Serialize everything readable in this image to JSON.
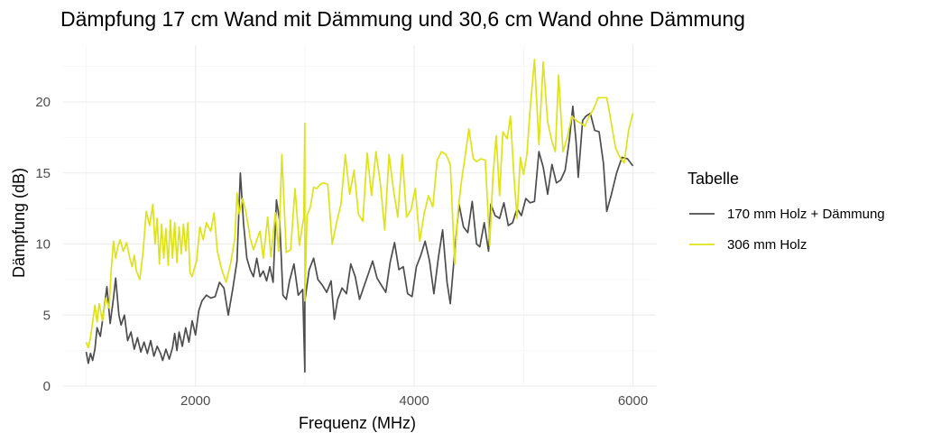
{
  "chart_data": {
    "type": "line",
    "title": "Dämpfung 17 cm Wand mit Dämmung und 30,6 cm Wand ohne Dämmung",
    "xlabel": "Frequenz (MHz)",
    "ylabel": "Dämpfung (dB)",
    "xlim": [
      790,
      6210
    ],
    "ylim": [
      0,
      24
    ],
    "xticks": [
      2000,
      4000,
      6000
    ],
    "yticks": [
      0,
      5,
      10,
      15,
      20
    ],
    "x_minor_ticks": [
      1000,
      3000,
      5000
    ],
    "y_minor_ticks": [
      2.5,
      7.5,
      12.5,
      17.5,
      22.5
    ],
    "grid": true,
    "legend": {
      "title": "Tabelle",
      "position": "right"
    },
    "series": [
      {
        "name": "170 mm Holz + Dämmung",
        "color": "#4d4d4d",
        "points": [
          [
            1000,
            2.4
          ],
          [
            1020,
            1.6
          ],
          [
            1040,
            2.3
          ],
          [
            1060,
            1.8
          ],
          [
            1080,
            2.6
          ],
          [
            1100,
            4.1
          ],
          [
            1130,
            3.5
          ],
          [
            1160,
            5.2
          ],
          [
            1190,
            7.0
          ],
          [
            1220,
            4.4
          ],
          [
            1250,
            6.2
          ],
          [
            1270,
            7.6
          ],
          [
            1300,
            5.0
          ],
          [
            1320,
            4.3
          ],
          [
            1350,
            5.0
          ],
          [
            1380,
            3.2
          ],
          [
            1410,
            3.8
          ],
          [
            1440,
            2.6
          ],
          [
            1470,
            3.4
          ],
          [
            1500,
            2.4
          ],
          [
            1530,
            3.1
          ],
          [
            1560,
            2.3
          ],
          [
            1590,
            3.2
          ],
          [
            1620,
            2.1
          ],
          [
            1650,
            2.8
          ],
          [
            1680,
            2.3
          ],
          [
            1700,
            1.8
          ],
          [
            1730,
            2.6
          ],
          [
            1760,
            1.9
          ],
          [
            1790,
            2.7
          ],
          [
            1810,
            3.7
          ],
          [
            1830,
            2.5
          ],
          [
            1850,
            3.8
          ],
          [
            1880,
            2.8
          ],
          [
            1910,
            4.1
          ],
          [
            1940,
            3.1
          ],
          [
            1970,
            4.6
          ],
          [
            2000,
            3.6
          ],
          [
            2030,
            5.3
          ],
          [
            2060,
            6.0
          ],
          [
            2100,
            6.4
          ],
          [
            2140,
            6.2
          ],
          [
            2180,
            6.3
          ],
          [
            2220,
            7.3
          ],
          [
            2260,
            6.9
          ],
          [
            2300,
            5.0
          ],
          [
            2340,
            6.8
          ],
          [
            2380,
            8.8
          ],
          [
            2410,
            15.0
          ],
          [
            2440,
            11.4
          ],
          [
            2470,
            9.0
          ],
          [
            2500,
            8.2
          ],
          [
            2530,
            7.7
          ],
          [
            2560,
            9.0
          ],
          [
            2590,
            7.7
          ],
          [
            2620,
            8.1
          ],
          [
            2650,
            7.4
          ],
          [
            2680,
            8.4
          ],
          [
            2710,
            7.3
          ],
          [
            2740,
            13.1
          ],
          [
            2770,
            11.6
          ],
          [
            2800,
            6.4
          ],
          [
            2830,
            6.1
          ],
          [
            2860,
            7.4
          ],
          [
            2900,
            8.6
          ],
          [
            2940,
            6.4
          ],
          [
            2980,
            6.8
          ],
          [
            3000,
            1.0
          ],
          [
            3000,
            6.0
          ],
          [
            3040,
            8.2
          ],
          [
            3080,
            9.0
          ],
          [
            3120,
            7.5
          ],
          [
            3160,
            7.1
          ],
          [
            3200,
            6.6
          ],
          [
            3240,
            7.4
          ],
          [
            3270,
            4.7
          ],
          [
            3300,
            6.1
          ],
          [
            3340,
            6.9
          ],
          [
            3380,
            6.5
          ],
          [
            3420,
            8.6
          ],
          [
            3460,
            7.7
          ],
          [
            3500,
            6.1
          ],
          [
            3540,
            7.0
          ],
          [
            3580,
            7.9
          ],
          [
            3620,
            8.8
          ],
          [
            3660,
            7.6
          ],
          [
            3700,
            7.1
          ],
          [
            3740,
            6.6
          ],
          [
            3780,
            8.7
          ],
          [
            3820,
            10.1
          ],
          [
            3860,
            8.2
          ],
          [
            3900,
            8.4
          ],
          [
            3940,
            6.5
          ],
          [
            3980,
            6.3
          ],
          [
            4020,
            8.4
          ],
          [
            4060,
            9.2
          ],
          [
            4100,
            10.2
          ],
          [
            4140,
            8.8
          ],
          [
            4180,
            6.5
          ],
          [
            4220,
            9.0
          ],
          [
            4260,
            11.0
          ],
          [
            4300,
            7.3
          ],
          [
            4330,
            5.8
          ],
          [
            4370,
            9.5
          ],
          [
            4410,
            12.8
          ],
          [
            4450,
            11.2
          ],
          [
            4490,
            10.8
          ],
          [
            4530,
            13.0
          ],
          [
            4570,
            10.0
          ],
          [
            4600,
            9.8
          ],
          [
            4640,
            11.5
          ],
          [
            4680,
            9.5
          ],
          [
            4700,
            12.8
          ],
          [
            4740,
            12.0
          ],
          [
            4780,
            11.8
          ],
          [
            4820,
            12.9
          ],
          [
            4860,
            11.3
          ],
          [
            4900,
            11.5
          ],
          [
            4940,
            12.5
          ],
          [
            4980,
            12.0
          ],
          [
            5020,
            13.2
          ],
          [
            5060,
            12.9
          ],
          [
            5100,
            13.0
          ],
          [
            5140,
            16.5
          ],
          [
            5180,
            15.4
          ],
          [
            5220,
            13.5
          ],
          [
            5260,
            15.6
          ],
          [
            5300,
            14.3
          ],
          [
            5340,
            14.5
          ],
          [
            5380,
            15.2
          ],
          [
            5420,
            17.4
          ],
          [
            5450,
            19.7
          ],
          [
            5480,
            17.2
          ],
          [
            5500,
            14.7
          ],
          [
            5540,
            18.7
          ],
          [
            5570,
            19.0
          ],
          [
            5610,
            19.2
          ],
          [
            5650,
            18.0
          ],
          [
            5690,
            17.9
          ],
          [
            5730,
            15.7
          ],
          [
            5760,
            12.3
          ],
          [
            5800,
            13.4
          ],
          [
            5850,
            15.0
          ],
          [
            5900,
            16.1
          ],
          [
            5950,
            16.0
          ],
          [
            6000,
            15.5
          ]
        ]
      },
      {
        "name": "306 mm Holz",
        "color": "#dde318",
        "points": [
          [
            1000,
            3.1
          ],
          [
            1020,
            2.7
          ],
          [
            1040,
            3.4
          ],
          [
            1060,
            4.5
          ],
          [
            1080,
            5.7
          ],
          [
            1100,
            4.5
          ],
          [
            1120,
            5.8
          ],
          [
            1150,
            4.6
          ],
          [
            1180,
            6.2
          ],
          [
            1210,
            5.5
          ],
          [
            1230,
            8.2
          ],
          [
            1250,
            10.2
          ],
          [
            1270,
            9.0
          ],
          [
            1290,
            9.8
          ],
          [
            1310,
            10.3
          ],
          [
            1340,
            9.5
          ],
          [
            1370,
            10.1
          ],
          [
            1400,
            9.0
          ],
          [
            1420,
            8.4
          ],
          [
            1440,
            9.2
          ],
          [
            1460,
            8.1
          ],
          [
            1490,
            7.5
          ],
          [
            1520,
            9.4
          ],
          [
            1550,
            12.3
          ],
          [
            1580,
            11.3
          ],
          [
            1610,
            12.8
          ],
          [
            1630,
            10.0
          ],
          [
            1650,
            11.8
          ],
          [
            1670,
            8.6
          ],
          [
            1690,
            11.4
          ],
          [
            1710,
            9.0
          ],
          [
            1730,
            11.1
          ],
          [
            1750,
            8.5
          ],
          [
            1770,
            11.7
          ],
          [
            1790,
            9.0
          ],
          [
            1810,
            11.5
          ],
          [
            1830,
            8.7
          ],
          [
            1850,
            11.2
          ],
          [
            1870,
            9.3
          ],
          [
            1890,
            11.4
          ],
          [
            1910,
            9.5
          ],
          [
            1930,
            11.5
          ],
          [
            1950,
            8.0
          ],
          [
            1970,
            7.7
          ],
          [
            1990,
            8.3
          ],
          [
            2010,
            8.8
          ],
          [
            2040,
            11.2
          ],
          [
            2070,
            10.3
          ],
          [
            2100,
            11.5
          ],
          [
            2140,
            10.9
          ],
          [
            2170,
            12.2
          ],
          [
            2200,
            9.5
          ],
          [
            2240,
            8.2
          ],
          [
            2280,
            7.3
          ],
          [
            2320,
            8.6
          ],
          [
            2360,
            10.4
          ],
          [
            2380,
            13.6
          ],
          [
            2400,
            12.1
          ],
          [
            2430,
            13.2
          ],
          [
            2460,
            12.3
          ],
          [
            2500,
            10.4
          ],
          [
            2530,
            9.6
          ],
          [
            2560,
            10.3
          ],
          [
            2590,
            10.9
          ],
          [
            2620,
            9.0
          ],
          [
            2660,
            11.9
          ],
          [
            2690,
            9.1
          ],
          [
            2730,
            12.2
          ],
          [
            2760,
            9.5
          ],
          [
            2790,
            16.3
          ],
          [
            2830,
            9.4
          ],
          [
            2870,
            9.6
          ],
          [
            2910,
            13.9
          ],
          [
            2950,
            9.9
          ],
          [
            2990,
            11.9
          ],
          [
            3000,
            18.5
          ],
          [
            3000,
            6.0
          ],
          [
            3020,
            12.0
          ],
          [
            3050,
            12.6
          ],
          [
            3080,
            14.0
          ],
          [
            3110,
            13.9
          ],
          [
            3140,
            14.2
          ],
          [
            3170,
            14.3
          ],
          [
            3210,
            14.2
          ],
          [
            3250,
            10.0
          ],
          [
            3290,
            11.5
          ],
          [
            3330,
            12.8
          ],
          [
            3370,
            16.3
          ],
          [
            3410,
            13.5
          ],
          [
            3450,
            15.2
          ],
          [
            3490,
            12.1
          ],
          [
            3530,
            11.6
          ],
          [
            3570,
            16.4
          ],
          [
            3610,
            13.4
          ],
          [
            3650,
            16.5
          ],
          [
            3690,
            14.3
          ],
          [
            3730,
            11.0
          ],
          [
            3770,
            16.3
          ],
          [
            3810,
            13.8
          ],
          [
            3850,
            11.9
          ],
          [
            3890,
            16.3
          ],
          [
            3930,
            11.9
          ],
          [
            3970,
            12.4
          ],
          [
            4010,
            13.9
          ],
          [
            4050,
            10.2
          ],
          [
            4090,
            12.1
          ],
          [
            4130,
            13.4
          ],
          [
            4170,
            12.6
          ],
          [
            4210,
            15.9
          ],
          [
            4250,
            16.5
          ],
          [
            4290,
            16.3
          ],
          [
            4330,
            15.6
          ],
          [
            4370,
            8.6
          ],
          [
            4400,
            12.3
          ],
          [
            4430,
            14.3
          ],
          [
            4460,
            15.9
          ],
          [
            4500,
            18.1
          ],
          [
            4540,
            16.0
          ],
          [
            4570,
            15.8
          ],
          [
            4610,
            16.0
          ],
          [
            4650,
            15.9
          ],
          [
            4690,
            9.9
          ],
          [
            4720,
            14.8
          ],
          [
            4750,
            17.6
          ],
          [
            4780,
            13.4
          ],
          [
            4810,
            17.9
          ],
          [
            4850,
            17.4
          ],
          [
            4880,
            19.0
          ],
          [
            4910,
            15.0
          ],
          [
            4940,
            11.8
          ],
          [
            4970,
            16.1
          ],
          [
            5000,
            14.9
          ],
          [
            5030,
            16.3
          ],
          [
            5060,
            19.5
          ],
          [
            5100,
            23.0
          ],
          [
            5140,
            17.0
          ],
          [
            5180,
            22.8
          ],
          [
            5220,
            18.6
          ],
          [
            5260,
            17.2
          ],
          [
            5290,
            16.5
          ],
          [
            5320,
            21.9
          ],
          [
            5360,
            16.5
          ],
          [
            5400,
            17.5
          ],
          [
            5440,
            19.0
          ],
          [
            5480,
            18.7
          ],
          [
            5520,
            18.5
          ],
          [
            5560,
            18.3
          ],
          [
            5600,
            19.0
          ],
          [
            5640,
            19.5
          ],
          [
            5680,
            20.3
          ],
          [
            5720,
            20.3
          ],
          [
            5760,
            20.3
          ],
          [
            5800,
            18.6
          ],
          [
            5840,
            16.8
          ],
          [
            5880,
            16.1
          ],
          [
            5920,
            15.7
          ],
          [
            5960,
            18.0
          ],
          [
            6000,
            19.2
          ]
        ]
      }
    ]
  }
}
